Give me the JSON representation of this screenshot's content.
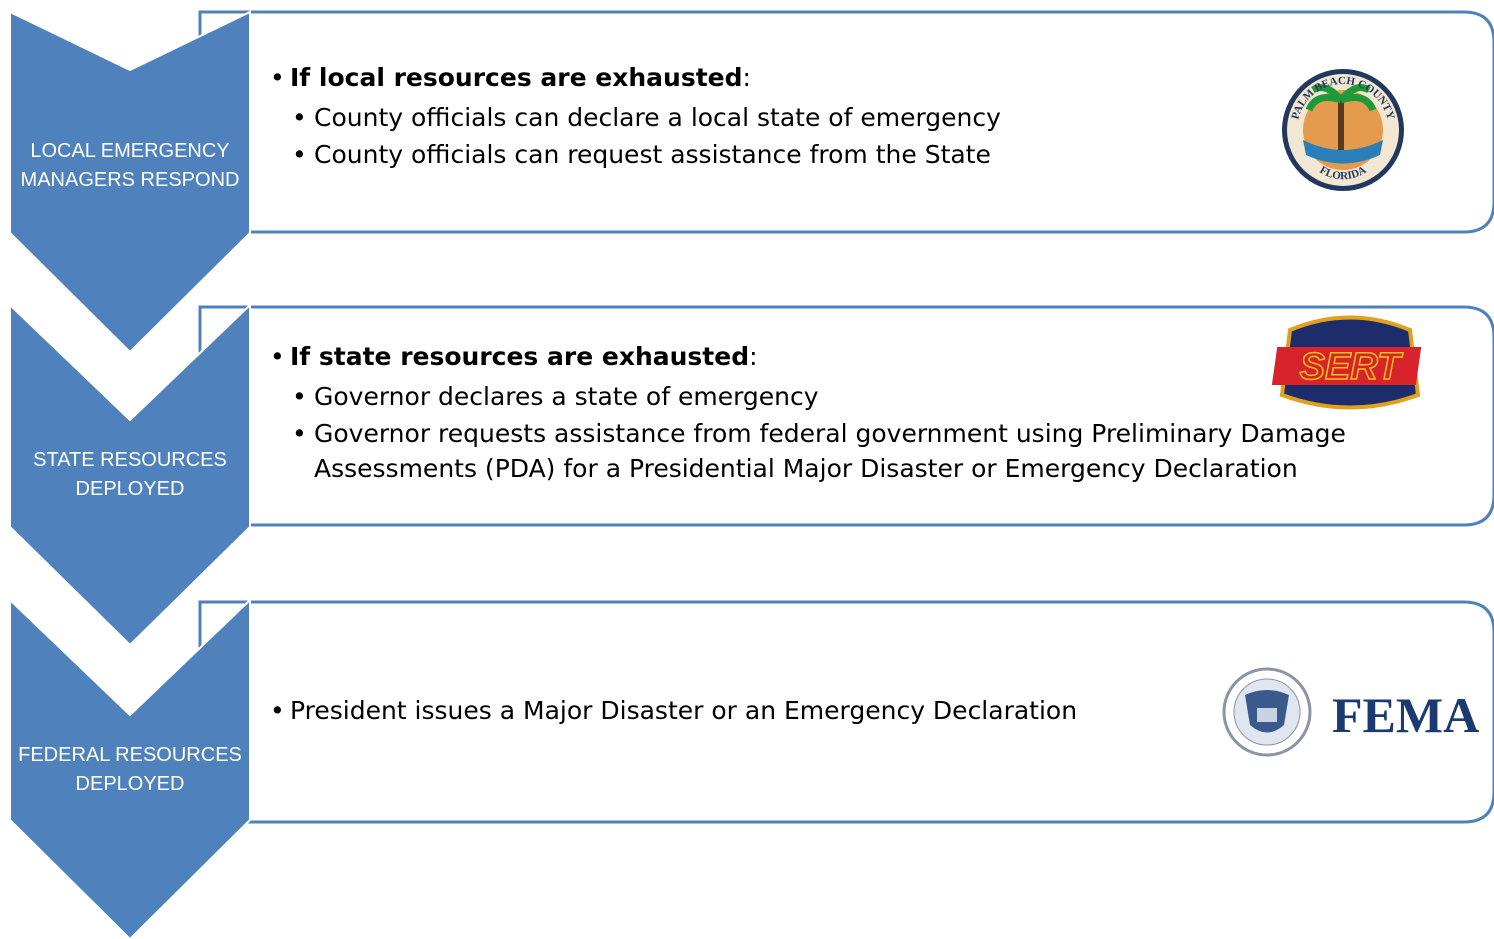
{
  "steps": [
    {
      "label": "LOCAL EMERGENCY MANAGERS RESPOND",
      "heading": "If local resources are exhausted",
      "heading_suffix": ":",
      "items": [
        "County officials can declare a local state of emergency",
        "County officials can request assistance from the State"
      ],
      "logo_text": [
        "PALM BEACH COUNTY",
        "FLORIDA"
      ]
    },
    {
      "label": "STATE RESOURCES DEPLOYED",
      "heading": "If state resources are exhausted",
      "heading_suffix": ":",
      "items": [
        "Governor declares a state of emergency",
        "Governor requests assistance from federal government using Preliminary Damage Assessments (PDA) for a Presidential Major Disaster or Emergency Declaration"
      ],
      "logo_text": [
        "SERT"
      ]
    },
    {
      "label": "FEDERAL RESOURCES DEPLOYED",
      "items": [
        "President issues a Major Disaster or an Emergency Declaration"
      ],
      "logo_text": [
        "FEMA"
      ]
    }
  ]
}
